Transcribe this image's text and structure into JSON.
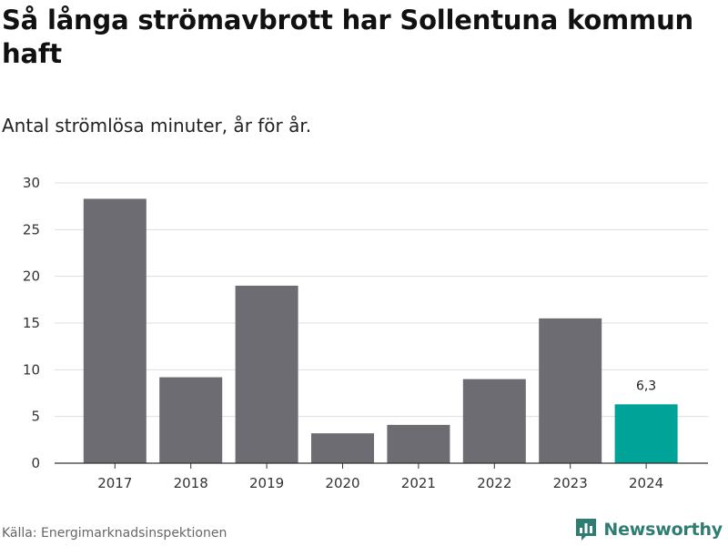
{
  "header": {
    "title": "Så långa strömavbrott har Sollentuna kommun haft",
    "subtitle": "Antal strömlösa minuter, år för år."
  },
  "footer": {
    "source": "Källa: Energimarknadsinspektionen",
    "brand": "Newsworthy",
    "brand_icon": "newsworthy-logo-icon"
  },
  "colors": {
    "bar": "#6d6c72",
    "highlight": "#00a398",
    "grid": "#dddddd",
    "axis": "#333333",
    "brand": "#2f7d72"
  },
  "chart_data": {
    "type": "bar",
    "title": "Så långa strömavbrott har Sollentuna kommun haft",
    "subtitle": "Antal strömlösa minuter, år för år.",
    "xlabel": "",
    "ylabel": "",
    "categories": [
      "2017",
      "2018",
      "2019",
      "2020",
      "2021",
      "2022",
      "2023",
      "2024"
    ],
    "values": [
      28.3,
      9.2,
      19.0,
      3.2,
      4.1,
      9.0,
      15.5,
      6.3
    ],
    "highlight_index": 7,
    "data_labels": [
      {
        "index": 7,
        "text": "6,3"
      }
    ],
    "ylim": [
      0,
      30
    ],
    "yticks": [
      0,
      5,
      10,
      15,
      20,
      25,
      30
    ],
    "grid": true,
    "legend": "none"
  }
}
